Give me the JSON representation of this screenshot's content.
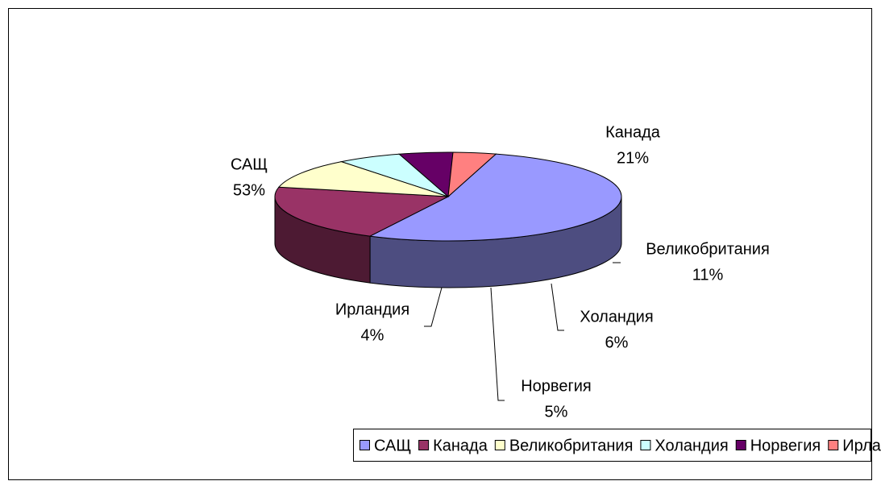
{
  "chart_data": {
    "type": "pie",
    "categories": [
      "САЩ",
      "Канада",
      "Великобритания",
      "Холандия",
      "Норвегия",
      "Ирландия"
    ],
    "values": [
      53,
      21,
      11,
      6,
      5,
      4
    ],
    "value_labels": [
      "53%",
      "21%",
      "11%",
      "6%",
      "5%",
      "4%"
    ],
    "colors": [
      "#9999ff",
      "#993366",
      "#ffffcc",
      "#ccffff",
      "#660066",
      "#ff8080"
    ],
    "legend": "bottom"
  }
}
